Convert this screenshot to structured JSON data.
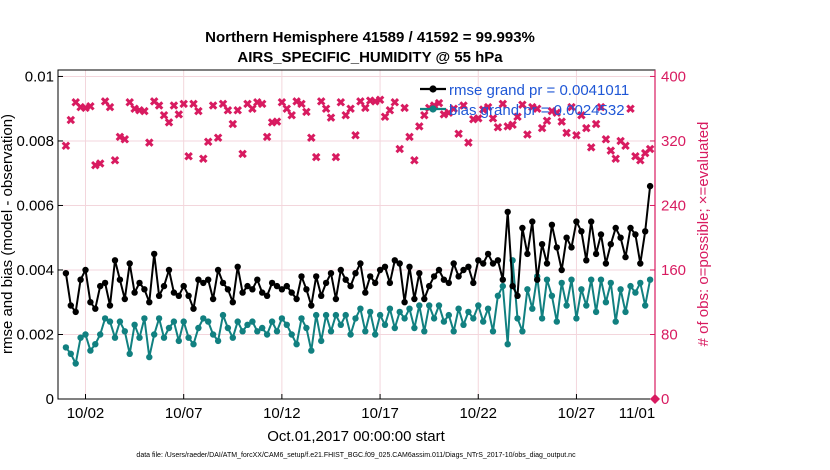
{
  "chart_data": {
    "type": "line",
    "title": "Northern Hemisphere 41589 / 41592 = 99.993%",
    "subtitle": "AIRS_SPECIFIC_HUMIDITY @ 55 hPa",
    "xlabel": "Oct.01,2017 00:00:00 start",
    "ylabel": "rmse and bias (model - observation)",
    "y2label": "# of obs: o=possible; ×=evaluated",
    "footer": "data file: /Users/raeder/DAI/ATM_forcXX/CAM6_setup/f.e21.FHIST_BGC.f09_025.CAM6assim.011/Diags_NTrS_2017-10/obs_diag_output.nc",
    "xlim": [
      0.6,
      31.0
    ],
    "ylim": [
      0,
      0.0102
    ],
    "y2lim": [
      0,
      408
    ],
    "x_ticks": [
      2,
      7,
      12,
      17,
      22,
      27,
      32
    ],
    "x_tick_labels": [
      "10/02",
      "10/07",
      "10/12",
      "10/17",
      "10/22",
      "10/27",
      "11/01"
    ],
    "y_ticks": [
      0,
      0.002,
      0.004,
      0.006,
      0.008,
      0.01
    ],
    "y_tick_labels": [
      "0",
      "0.002",
      "0.004",
      "0.006",
      "0.008",
      "0.01"
    ],
    "y2_ticks": [
      0,
      80,
      160,
      240,
      320,
      400
    ],
    "y2_tick_labels": [
      "0",
      "80",
      "160",
      "240",
      "320",
      "400"
    ],
    "grid": true,
    "legend_position": "top-right",
    "colors": {
      "rmse": "#000000",
      "bias": "#118080",
      "obs": "#d81b60",
      "right_axis": "#d81b60",
      "legend_text": "#1f57d6"
    },
    "series": [
      {
        "name": "rmse grand pr = 0.0041011",
        "axis": "left",
        "x": [
          1.0,
          1.25,
          1.5,
          1.75,
          2.0,
          2.25,
          2.5,
          2.75,
          3.0,
          3.25,
          3.5,
          3.75,
          4.0,
          4.25,
          4.5,
          4.75,
          5.0,
          5.25,
          5.5,
          5.75,
          6.0,
          6.25,
          6.5,
          6.75,
          7.0,
          7.25,
          7.5,
          7.75,
          8.0,
          8.25,
          8.5,
          8.75,
          9.0,
          9.25,
          9.5,
          9.75,
          10.0,
          10.25,
          10.5,
          10.75,
          11.0,
          11.25,
          11.5,
          11.75,
          12.0,
          12.25,
          12.5,
          12.75,
          13.0,
          13.25,
          13.5,
          13.75,
          14.0,
          14.25,
          14.5,
          14.75,
          15.0,
          15.25,
          15.5,
          15.75,
          16.0,
          16.25,
          16.5,
          16.75,
          17.0,
          17.25,
          17.5,
          17.75,
          18.0,
          18.25,
          18.5,
          18.75,
          19.0,
          19.25,
          19.5,
          19.75,
          20.0,
          20.25,
          20.5,
          20.75,
          21.0,
          21.25,
          21.5,
          21.75,
          22.0,
          22.25,
          22.5,
          22.75,
          23.0,
          23.25,
          23.5,
          23.75,
          24.0,
          24.25,
          24.5,
          24.75,
          25.0,
          25.25,
          25.5,
          25.75,
          26.0,
          26.25,
          26.5,
          26.75,
          27.0,
          27.25,
          27.5,
          27.75,
          28.0,
          28.25,
          28.5,
          28.75,
          29.0,
          29.25,
          29.5,
          29.75,
          30.0,
          30.25,
          30.5,
          30.75
        ],
        "values": [
          0.0039,
          0.0029,
          0.0027,
          0.0037,
          0.004,
          0.003,
          0.0028,
          0.0035,
          0.0036,
          0.0029,
          0.0043,
          0.0037,
          0.0031,
          0.0042,
          0.0033,
          0.0036,
          0.0034,
          0.003,
          0.0045,
          0.0032,
          0.0035,
          0.004,
          0.0033,
          0.0032,
          0.0035,
          0.0032,
          0.0028,
          0.0037,
          0.0036,
          0.0037,
          0.0031,
          0.004,
          0.0036,
          0.0034,
          0.003,
          0.0041,
          0.0033,
          0.0035,
          0.0034,
          0.0037,
          0.0033,
          0.0032,
          0.0036,
          0.0035,
          0.0034,
          0.0035,
          0.0033,
          0.0031,
          0.0038,
          0.0034,
          0.0029,
          0.0038,
          0.0032,
          0.0036,
          0.0039,
          0.0031,
          0.004,
          0.0037,
          0.0035,
          0.0039,
          0.0042,
          0.0033,
          0.0038,
          0.0036,
          0.004,
          0.0041,
          0.0036,
          0.0043,
          0.0042,
          0.003,
          0.0041,
          0.0031,
          0.0039,
          0.0031,
          0.0035,
          0.0038,
          0.004,
          0.0037,
          0.0036,
          0.0042,
          0.0038,
          0.004,
          0.0041,
          0.0036,
          0.0043,
          0.0042,
          0.0045,
          0.0042,
          0.0043,
          0.0037,
          0.0058,
          0.0035,
          0.0032,
          0.0053,
          0.0045,
          0.0055,
          0.0037,
          0.0048,
          0.0042,
          0.0054,
          0.0047,
          0.004,
          0.005,
          0.0047,
          0.0055,
          0.0052,
          0.0043,
          0.0055,
          0.0045,
          0.0051,
          0.0042,
          0.0048,
          0.0053,
          0.005,
          0.0044,
          0.0053,
          0.0051,
          0.0042,
          0.0052,
          0.0066
        ],
        "values_tail_note": ""
      },
      {
        "name": "bias grand pr = 0.0024532",
        "axis": "left",
        "x": [
          1.0,
          1.25,
          1.5,
          1.75,
          2.0,
          2.25,
          2.5,
          2.75,
          3.0,
          3.25,
          3.5,
          3.75,
          4.0,
          4.25,
          4.5,
          4.75,
          5.0,
          5.25,
          5.5,
          5.75,
          6.0,
          6.25,
          6.5,
          6.75,
          7.0,
          7.25,
          7.5,
          7.75,
          8.0,
          8.25,
          8.5,
          8.75,
          9.0,
          9.25,
          9.5,
          9.75,
          10.0,
          10.25,
          10.5,
          10.75,
          11.0,
          11.25,
          11.5,
          11.75,
          12.0,
          12.25,
          12.5,
          12.75,
          13.0,
          13.25,
          13.5,
          13.75,
          14.0,
          14.25,
          14.5,
          14.75,
          15.0,
          15.25,
          15.5,
          15.75,
          16.0,
          16.25,
          16.5,
          16.75,
          17.0,
          17.25,
          17.5,
          17.75,
          18.0,
          18.25,
          18.5,
          18.75,
          19.0,
          19.25,
          19.5,
          19.75,
          20.0,
          20.25,
          20.5,
          20.75,
          21.0,
          21.25,
          21.5,
          21.75,
          22.0,
          22.25,
          22.5,
          22.75,
          23.0,
          23.25,
          23.5,
          23.75,
          24.0,
          24.25,
          24.5,
          24.75,
          25.0,
          25.25,
          25.5,
          25.75,
          26.0,
          26.25,
          26.5,
          26.75,
          27.0,
          27.25,
          27.5,
          27.75,
          28.0,
          28.25,
          28.5,
          28.75,
          29.0,
          29.25,
          29.5,
          29.75,
          30.0,
          30.25,
          30.5,
          30.75
        ],
        "values": [
          0.0016,
          0.0014,
          0.0011,
          0.0019,
          0.002,
          0.0015,
          0.0017,
          0.002,
          0.0025,
          0.0024,
          0.0019,
          0.0024,
          0.0021,
          0.0014,
          0.0023,
          0.0019,
          0.0025,
          0.0013,
          0.002,
          0.0025,
          0.0019,
          0.0022,
          0.0024,
          0.0018,
          0.0024,
          0.0019,
          0.0017,
          0.0022,
          0.0025,
          0.0024,
          0.002,
          0.0018,
          0.0026,
          0.0022,
          0.0019,
          0.0024,
          0.0021,
          0.0023,
          0.0024,
          0.0021,
          0.0022,
          0.002,
          0.0024,
          0.0021,
          0.0025,
          0.0023,
          0.002,
          0.0017,
          0.0025,
          0.0022,
          0.0015,
          0.0026,
          0.0018,
          0.0026,
          0.0021,
          0.0026,
          0.0023,
          0.0026,
          0.002,
          0.0025,
          0.0028,
          0.0021,
          0.0027,
          0.002,
          0.0026,
          0.0023,
          0.0028,
          0.0022,
          0.0027,
          0.0025,
          0.0028,
          0.0022,
          0.0029,
          0.0021,
          0.0029,
          0.0025,
          0.0029,
          0.0024,
          0.0026,
          0.0021,
          0.0028,
          0.0023,
          0.0027,
          0.0025,
          0.0029,
          0.0024,
          0.0028,
          0.0021,
          0.0032,
          0.0035,
          0.0017,
          0.0043,
          0.0025,
          0.0021,
          0.0034,
          0.0028,
          0.0038,
          0.0025,
          0.0037,
          0.0032,
          0.0024,
          0.0036,
          0.0029,
          0.0037,
          0.0025,
          0.0034,
          0.0029,
          0.0037,
          0.0027,
          0.0037,
          0.003,
          0.0036,
          0.0024,
          0.0034,
          0.0027,
          0.0035,
          0.0033,
          0.0036,
          0.0029,
          0.0037
        ]
      },
      {
        "name": "",
        "type": "scatter",
        "axis": "right",
        "marker": "✖",
        "x": [
          1.0,
          1.25,
          1.5,
          1.75,
          2.0,
          2.25,
          2.5,
          2.75,
          3.0,
          3.25,
          3.5,
          3.75,
          4.0,
          4.25,
          4.5,
          4.75,
          5.0,
          5.25,
          5.5,
          5.75,
          6.0,
          6.25,
          6.5,
          6.75,
          7.0,
          7.25,
          7.5,
          7.75,
          8.0,
          8.25,
          8.5,
          8.75,
          9.0,
          9.25,
          9.5,
          9.75,
          10.0,
          10.25,
          10.5,
          10.75,
          11.0,
          11.25,
          11.5,
          11.75,
          12.0,
          12.25,
          12.5,
          12.75,
          13.0,
          13.25,
          13.5,
          13.75,
          14.0,
          14.25,
          14.5,
          14.75,
          15.0,
          15.25,
          15.5,
          15.75,
          16.0,
          16.25,
          16.5,
          16.75,
          17.0,
          17.25,
          17.5,
          17.75,
          18.0,
          18.25,
          18.5,
          18.75,
          19.0,
          19.25,
          19.5,
          19.75,
          20.0,
          20.25,
          20.5,
          20.75,
          21.0,
          21.25,
          21.5,
          21.75,
          22.0,
          22.25,
          22.5,
          22.75,
          23.0,
          23.25,
          23.5,
          23.75,
          24.0,
          24.25,
          24.5,
          24.75,
          25.0,
          25.25,
          25.5,
          25.75,
          26.0,
          26.25,
          26.5,
          26.75,
          27.0,
          27.25,
          27.5,
          27.75,
          28.0,
          28.25,
          28.5,
          28.75,
          29.0,
          29.25,
          29.5,
          29.75,
          30.0,
          30.25,
          30.5,
          30.75
        ],
        "values": [
          314,
          346,
          368,
          362,
          361,
          363,
          290,
          292,
          369,
          362,
          296,
          325,
          322,
          368,
          360,
          358,
          357,
          318,
          369,
          364,
          352,
          343,
          364,
          353,
          366,
          301,
          366,
          357,
          298,
          319,
          364,
          324,
          366,
          358,
          341,
          358,
          304,
          366,
          360,
          368,
          366,
          325,
          343,
          344,
          368,
          360,
          352,
          369,
          366,
          356,
          324,
          300,
          369,
          360,
          349,
          300,
          368,
          352,
          360,
          327,
          369,
          361,
          370,
          369,
          371,
          350,
          358,
          368,
          310,
          361,
          325,
          296,
          338,
          352,
          361,
          364,
          367,
          353,
          355,
          360,
          329,
          364,
          318,
          347,
          348,
          359,
          362,
          348,
          337,
          366,
          338,
          340,
          350,
          365,
          328,
          362,
          360,
          336,
          345,
          357,
          355,
          344,
          330,
          362,
          327,
          352,
          336,
          312,
          341,
          362,
          322,
          308,
          298,
          320,
          314,
          360,
          301,
          296,
          305,
          310
        ]
      }
    ]
  }
}
